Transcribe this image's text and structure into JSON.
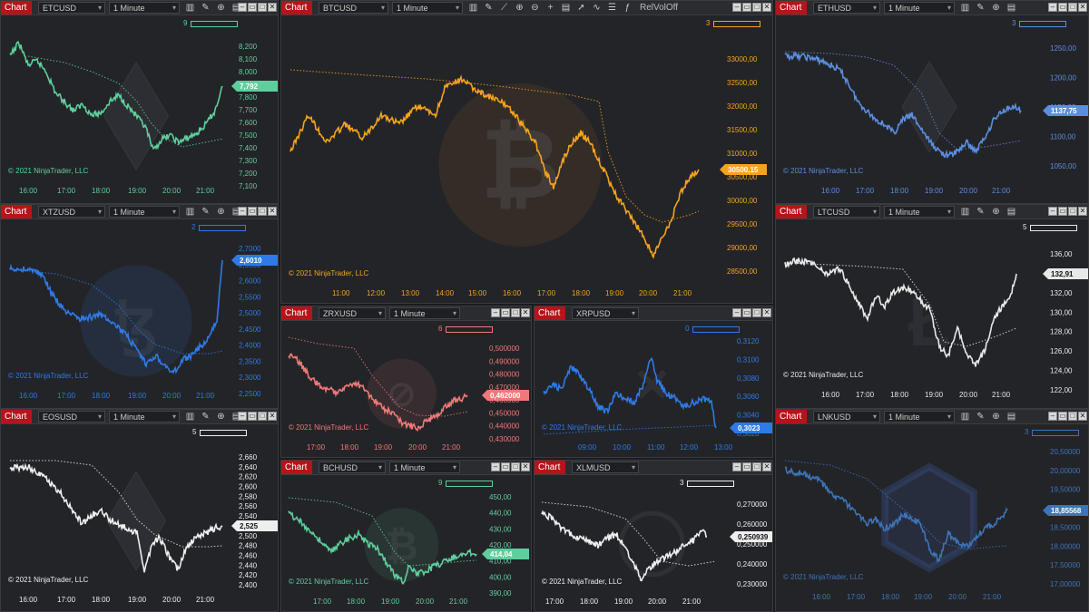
{
  "app": {
    "chart_label": "Chart",
    "interval_label": "1 Minute",
    "copyright": "© 2021 NinjaTrader, LLC",
    "toolbar_text": "RelVolOff"
  },
  "charts": [
    {
      "id": "etc",
      "symbol": "ETCUSD",
      "color": "#5ecf9c",
      "price": "7,792",
      "indicator": "9",
      "watermark": "eth",
      "show_interval": true,
      "x_labels": [
        "16:00",
        "17:00",
        "18:00",
        "19:00",
        "20:00",
        "21:00"
      ],
      "y_labels": [
        "8,200",
        "8,100",
        "8,000",
        "7,900",
        "7,800",
        "7,700",
        "7,600",
        "7,500",
        "7,400",
        "7,300",
        "7,200",
        "7,100"
      ]
    },
    {
      "id": "btc",
      "symbol": "BTCUSD",
      "color": "#f5a31c",
      "price": "30500,15",
      "indicator": "3",
      "watermark": "btc",
      "show_interval": true,
      "x_labels": [
        "11:00",
        "12:00",
        "13:00",
        "14:00",
        "15:00",
        "16:00",
        "17:00",
        "18:00",
        "19:00",
        "20:00",
        "21:00"
      ],
      "y_labels": [
        "33000,00",
        "32500,00",
        "32000,00",
        "31500,00",
        "31000,00",
        "30500,00",
        "30000,00",
        "29500,00",
        "29000,00",
        "28500,00"
      ]
    },
    {
      "id": "eth",
      "symbol": "ETHUSD",
      "color": "#5b8ee0",
      "price": "1137,75",
      "indicator": "3",
      "watermark": "eth",
      "show_interval": true,
      "x_labels": [
        "16:00",
        "17:00",
        "18:00",
        "19:00",
        "20:00",
        "21:00"
      ],
      "y_labels": [
        "1250,00",
        "1200,00",
        "1150,00",
        "1100,00",
        "1050,00"
      ]
    },
    {
      "id": "xtz",
      "symbol": "XTZUSD",
      "color": "#2e7ae6",
      "price": "2,6010",
      "indicator": "2",
      "watermark": "xtz",
      "show_interval": true,
      "x_labels": [
        "16:00",
        "17:00",
        "18:00",
        "19:00",
        "20:00",
        "21:00"
      ],
      "y_labels": [
        "2,7000",
        "2,6500",
        "2,6000",
        "2,5500",
        "2,5000",
        "2,4500",
        "2,4000",
        "2,3500",
        "2,3000",
        "2,2500"
      ]
    },
    {
      "id": "ltc",
      "symbol": "LTCUSD",
      "color": "#e8e8e8",
      "price": "132,91",
      "indicator": "5",
      "watermark": "ltc",
      "show_interval": true,
      "x_labels": [
        "16:00",
        "17:00",
        "18:00",
        "19:00",
        "20:00",
        "21:00"
      ],
      "y_labels": [
        "136,00",
        "134,00",
        "132,00",
        "130,00",
        "128,00",
        "126,00",
        "124,00",
        "122,00"
      ]
    },
    {
      "id": "zrx",
      "symbol": "ZRXUSD",
      "color": "#f07878",
      "price": "0,462000",
      "indicator": "6",
      "watermark": "zrx",
      "show_interval": true,
      "x_labels": [
        "17:00",
        "18:00",
        "19:00",
        "20:00",
        "21:00"
      ],
      "y_labels": [
        "0,500000",
        "0,490000",
        "0,480000",
        "0,470000",
        "0,460000",
        "0,450000",
        "0,440000",
        "0,430000"
      ]
    },
    {
      "id": "xrp",
      "symbol": "XRPUSD",
      "color": "#2e7ae6",
      "price": "0,3023",
      "indicator": "0",
      "watermark": "xrp",
      "show_interval": false,
      "x_labels": [
        "09:00",
        "10:00",
        "11:00",
        "12:00",
        "13:00"
      ],
      "y_labels": [
        "0,3120",
        "0,3100",
        "0,3080",
        "0,3060",
        "0,3040",
        "0,3020"
      ]
    },
    {
      "id": "eos",
      "symbol": "EOSUSD",
      "color": "#eeeeee",
      "price": "2,525",
      "indicator": "5",
      "watermark": "eos",
      "show_interval": true,
      "x_labels": [
        "16:00",
        "17:00",
        "18:00",
        "19:00",
        "20:00",
        "21:00"
      ],
      "y_labels": [
        "2,660",
        "2,640",
        "2,620",
        "2,600",
        "2,580",
        "2,560",
        "2,540",
        "2,520",
        "2,500",
        "2,480",
        "2,460",
        "2,440",
        "2,420",
        "2,400"
      ]
    },
    {
      "id": "bch",
      "symbol": "BCHUSD",
      "color": "#5ecf9c",
      "price": "414,04",
      "indicator": "9",
      "watermark": "bch",
      "show_interval": true,
      "x_labels": [
        "17:00",
        "18:00",
        "19:00",
        "20:00",
        "21:00"
      ],
      "y_labels": [
        "450,00",
        "440,00",
        "430,00",
        "420,00",
        "410,00",
        "400,00",
        "390,00"
      ]
    },
    {
      "id": "xlm",
      "symbol": "XLMUSD",
      "color": "#eeeeee",
      "price": "0,250939",
      "indicator": "3",
      "watermark": "xlm",
      "show_interval": false,
      "x_labels": [
        "17:00",
        "18:00",
        "19:00",
        "20:00",
        "21:00"
      ],
      "y_labels": [
        "0,270000",
        "0,260000",
        "0,250000",
        "0,240000",
        "0,230000"
      ]
    },
    {
      "id": "lnk",
      "symbol": "LNKUSD",
      "color": "#3d74b8",
      "price": "18,85568",
      "indicator": "3",
      "watermark": "lnk",
      "show_interval": true,
      "x_labels": [
        "16:00",
        "17:00",
        "18:00",
        "19:00",
        "20:00",
        "21:00"
      ],
      "y_labels": [
        "20,50000",
        "20,00000",
        "19,50000",
        "19,00000",
        "18,50000",
        "18,00000",
        "17,50000",
        "17,00000"
      ]
    }
  ]
}
